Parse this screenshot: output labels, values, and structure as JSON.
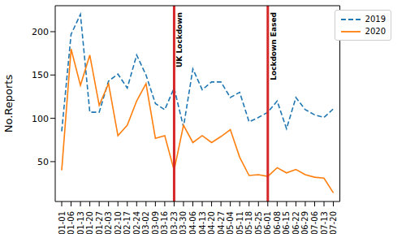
{
  "chart_data": {
    "type": "line",
    "y_label": "No.Reports",
    "categories": [
      "01-01",
      "01-06",
      "01-13",
      "01-20",
      "01-27",
      "02-03",
      "02-10",
      "02-17",
      "02-24",
      "03-02",
      "03-09",
      "03-16",
      "03-23",
      "03-30",
      "04-06",
      "04-13",
      "04-20",
      "04-27",
      "05-04",
      "05-11",
      "05-18",
      "05-25",
      "06-01",
      "06-08",
      "06-15",
      "06-22",
      "06-29",
      "07-06",
      "07-13",
      "07-20"
    ],
    "series": [
      {
        "name": "2019",
        "color": "#1f77b4",
        "line_style": "dashed",
        "values": [
          85,
          197,
          220,
          107,
          107,
          143,
          151,
          135,
          173,
          150,
          117,
          110,
          135,
          90,
          157,
          133,
          142,
          142,
          124,
          130,
          96,
          101,
          107,
          120,
          88,
          124,
          110,
          104,
          101,
          111
        ]
      },
      {
        "name": "2020",
        "color": "#ff7f0e",
        "line_style": "solid",
        "values": [
          40,
          180,
          138,
          173,
          115,
          140,
          80,
          92,
          120,
          140,
          77,
          80,
          40,
          92,
          72,
          80,
          72,
          79,
          87,
          55,
          34,
          35,
          33,
          43,
          37,
          41,
          35,
          32,
          31,
          14
        ]
      }
    ],
    "ylim": [
      4,
      230
    ],
    "yticks": [
      50,
      100,
      150,
      200
    ],
    "grid": false,
    "legend": "upper right",
    "annotations": [
      {
        "x": "03-23",
        "text": "UK Lockdown",
        "color": "#d62728"
      },
      {
        "x": "06-01",
        "text": "Lockdown Eased",
        "color": "#d62728"
      }
    ]
  }
}
